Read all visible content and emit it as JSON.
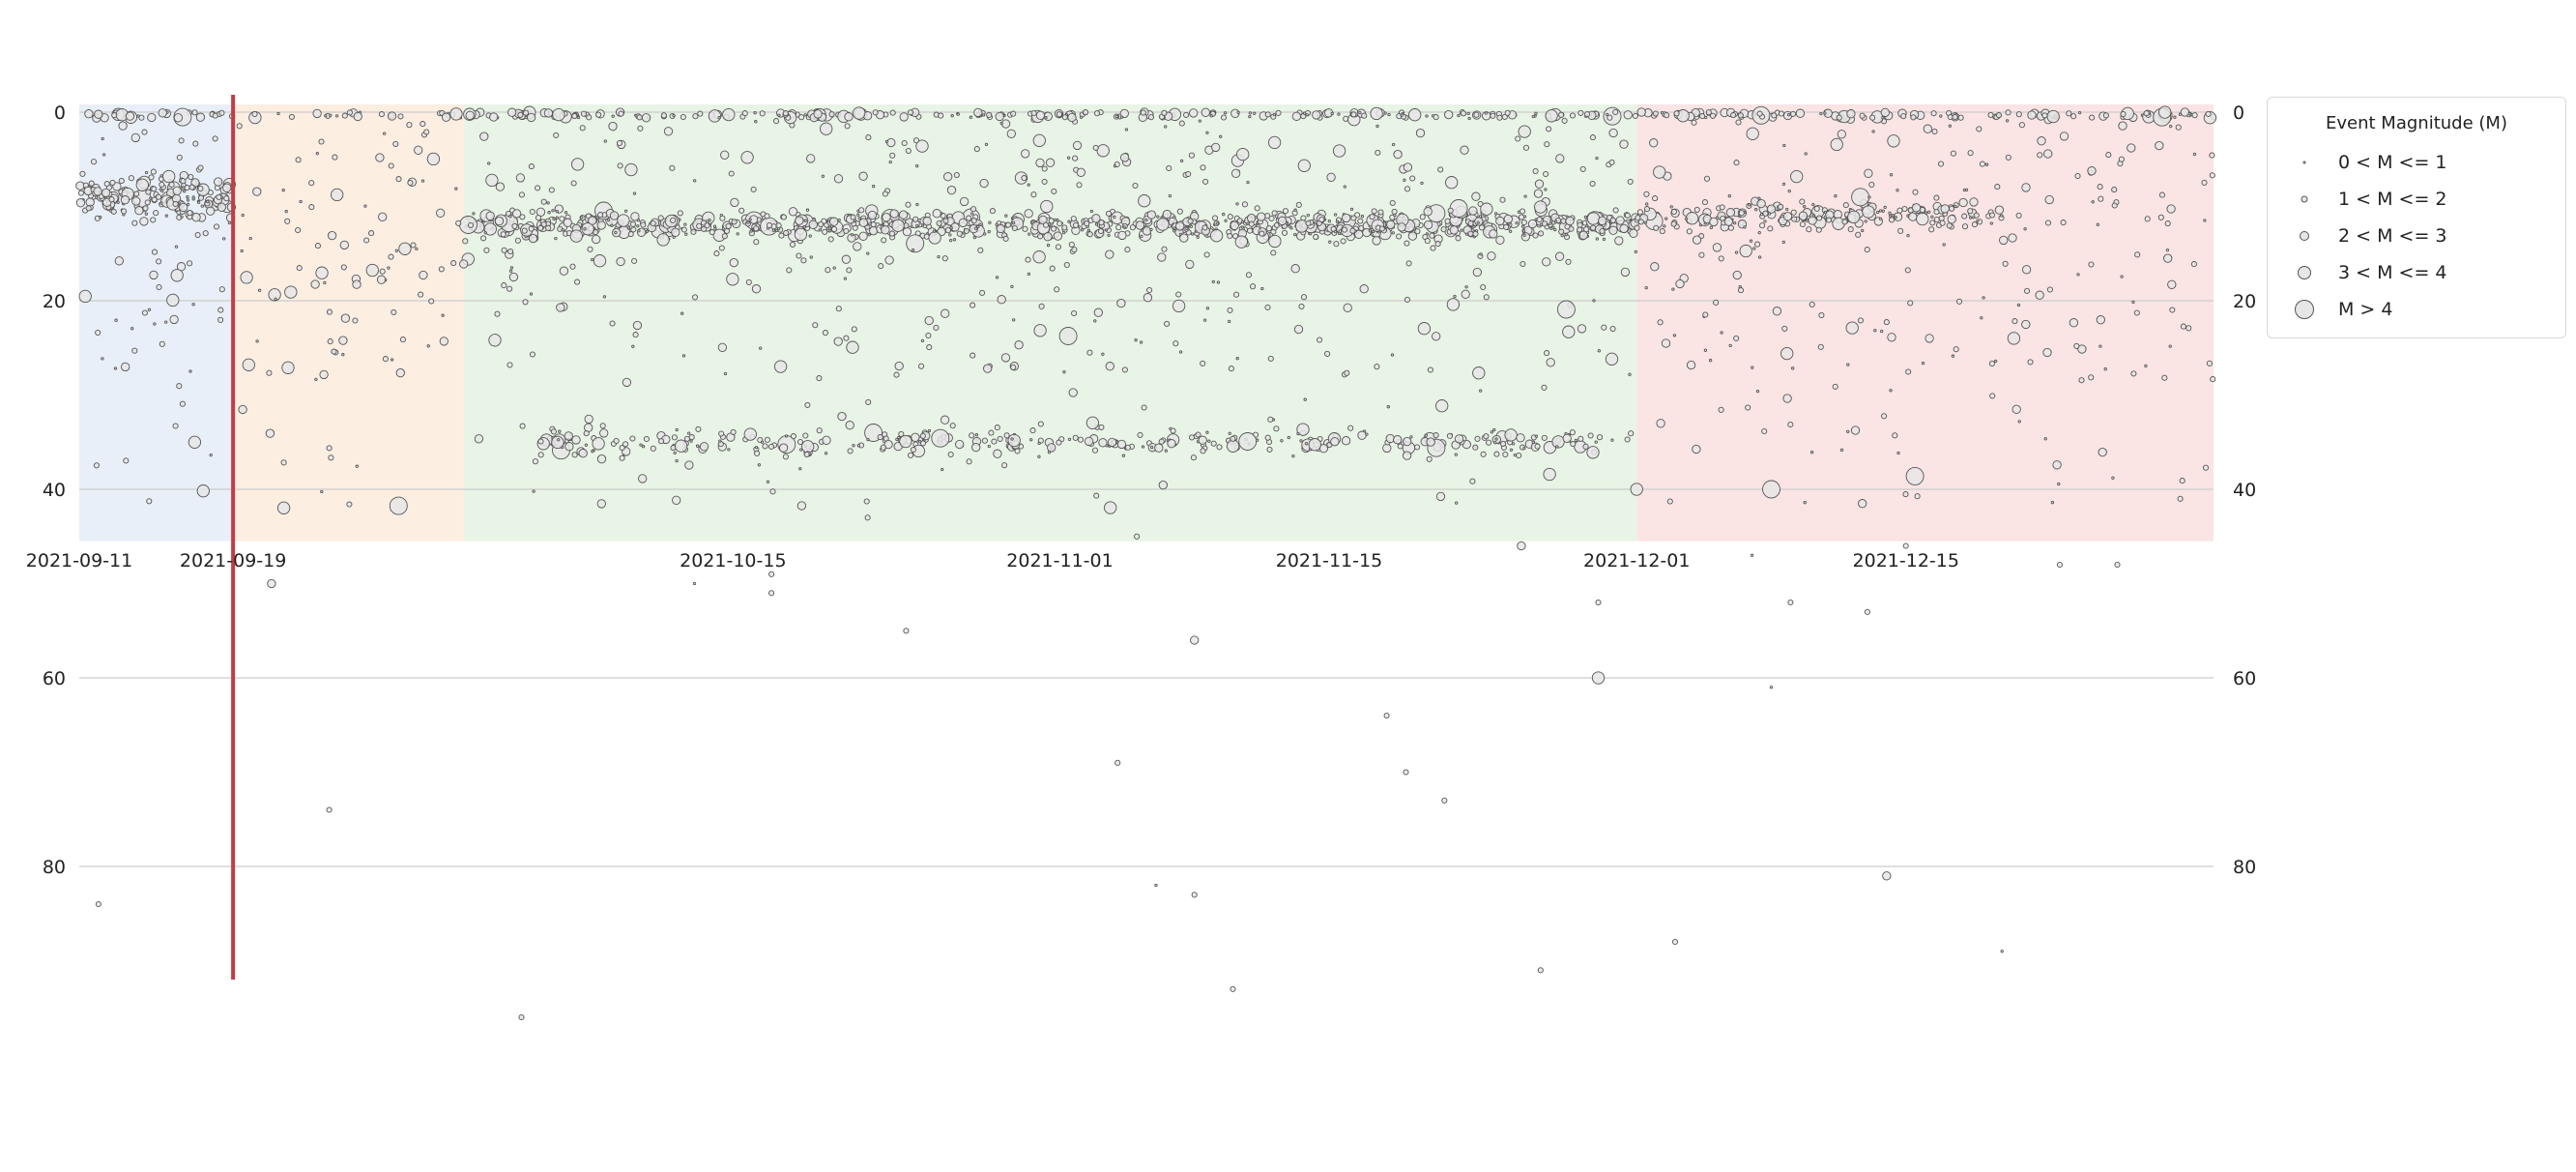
{
  "chart_data": {
    "type": "scatter",
    "title": "",
    "xlabel": "",
    "ylabel": "",
    "x_axis": {
      "type": "date",
      "range": [
        "2021-09-11",
        "2021-12-31"
      ],
      "ticks": [
        "2021-09-11",
        "2021-09-19",
        "2021-10-15",
        "2021-11-01",
        "2021-11-15",
        "2021-12-01",
        "2021-12-15"
      ]
    },
    "y_axis": {
      "inverted": true,
      "range": [
        0,
        92
      ],
      "ticks": [
        0,
        20,
        40,
        60,
        80
      ],
      "tick_labels_both_sides": true,
      "grid": true
    },
    "shaded_periods": [
      {
        "start": "2021-09-11",
        "end": "2021-09-19",
        "color": "#e8eff8"
      },
      {
        "start": "2021-09-19",
        "end": "2021-10-01",
        "color": "#fdeee2"
      },
      {
        "start": "2021-10-01",
        "end": "2021-12-01",
        "color": "#e8f4e5"
      },
      {
        "start": "2021-12-01",
        "end": "2021-12-31",
        "color": "#fbe4e4"
      }
    ],
    "vertical_marker": {
      "date": "2021-09-19",
      "color": "#c43c44"
    },
    "legend": {
      "title": "Event Magnitude (M)",
      "placement": "outside-right-top",
      "entries": [
        {
          "label": "0 < M <= 1",
          "magnitude_class": 1
        },
        {
          "label": "1 < M <= 2",
          "magnitude_class": 2
        },
        {
          "label": "2 < M <= 3",
          "magnitude_class": 3
        },
        {
          "label": "3 < M <= 4",
          "magnitude_class": 4
        },
        {
          "label": "M > 4",
          "magnitude_class": 5
        }
      ]
    },
    "marker_fill": "#e6e6e6",
    "marker_edge": "#555555",
    "note_dense_clusters": [
      {
        "start": "2021-09-11",
        "end": "2021-09-19",
        "depth_center": 9,
        "depth_spread": 5,
        "count": 180
      },
      {
        "start": "2021-10-01",
        "end": "2021-11-10",
        "depth_center": 12,
        "depth_spread": 3,
        "count": 600
      },
      {
        "start": "2021-11-10",
        "end": "2021-12-01",
        "depth_center": 12,
        "depth_spread": 3,
        "count": 400
      },
      {
        "start": "2021-12-01",
        "end": "2021-12-20",
        "depth_center": 11,
        "depth_spread": 3,
        "count": 200
      },
      {
        "start": "2021-10-05",
        "end": "2021-12-01",
        "depth_center": 35,
        "depth_spread": 3,
        "count": 350
      }
    ],
    "points": [
      {
        "date": "2021-09-12",
        "depth": 84,
        "mag": 1.5
      },
      {
        "date": "2021-09-17",
        "depth": 35,
        "mag": 3.5
      },
      {
        "date": "2021-09-21",
        "depth": 50,
        "mag": 2.5
      },
      {
        "date": "2021-09-24",
        "depth": 74,
        "mag": 2.0
      },
      {
        "date": "2021-10-04",
        "depth": 96,
        "mag": 2.0
      },
      {
        "date": "2021-10-13",
        "depth": 50,
        "mag": 1.0
      },
      {
        "date": "2021-10-17",
        "depth": 49,
        "mag": 2.0
      },
      {
        "date": "2021-10-17",
        "depth": 51,
        "mag": 2.0
      },
      {
        "date": "2021-10-22",
        "depth": 43,
        "mag": 1.5
      },
      {
        "date": "2021-10-24",
        "depth": 55,
        "mag": 1.5
      },
      {
        "date": "2021-11-04",
        "depth": 69,
        "mag": 2.0
      },
      {
        "date": "2021-11-05",
        "depth": 45,
        "mag": 2.0
      },
      {
        "date": "2021-11-06",
        "depth": 82,
        "mag": 1.0
      },
      {
        "date": "2021-11-08",
        "depth": 83,
        "mag": 2.0
      },
      {
        "date": "2021-11-08",
        "depth": 56,
        "mag": 2.5
      },
      {
        "date": "2021-11-10",
        "depth": 93,
        "mag": 1.5
      },
      {
        "date": "2021-11-18",
        "depth": 64,
        "mag": 1.5
      },
      {
        "date": "2021-11-19",
        "depth": 70,
        "mag": 2.0
      },
      {
        "date": "2021-11-21",
        "depth": 73,
        "mag": 1.5
      },
      {
        "date": "2021-11-25",
        "depth": 46,
        "mag": 3.0
      },
      {
        "date": "2021-11-26",
        "depth": 91,
        "mag": 2.0
      },
      {
        "date": "2021-11-29",
        "depth": 60,
        "mag": 4.0
      },
      {
        "date": "2021-11-29",
        "depth": 52,
        "mag": 2.0
      },
      {
        "date": "2021-12-01",
        "depth": 40,
        "mag": 3.5
      },
      {
        "date": "2021-12-03",
        "depth": 88,
        "mag": 1.5
      },
      {
        "date": "2021-12-07",
        "depth": 47,
        "mag": 1.0
      },
      {
        "date": "2021-12-08",
        "depth": 61,
        "mag": 1.0
      },
      {
        "date": "2021-12-08",
        "depth": 40,
        "mag": 4.5
      },
      {
        "date": "2021-12-09",
        "depth": 52,
        "mag": 1.5
      },
      {
        "date": "2021-12-13",
        "depth": 53,
        "mag": 2.0
      },
      {
        "date": "2021-12-14",
        "depth": 81,
        "mag": 2.5
      },
      {
        "date": "2021-12-15",
        "depth": 46,
        "mag": 1.5
      },
      {
        "date": "2021-12-20",
        "depth": 89,
        "mag": 1.0
      },
      {
        "date": "2021-12-23",
        "depth": 48,
        "mag": 1.5
      },
      {
        "date": "2021-12-26",
        "depth": 48,
        "mag": 1.5
      }
    ]
  }
}
